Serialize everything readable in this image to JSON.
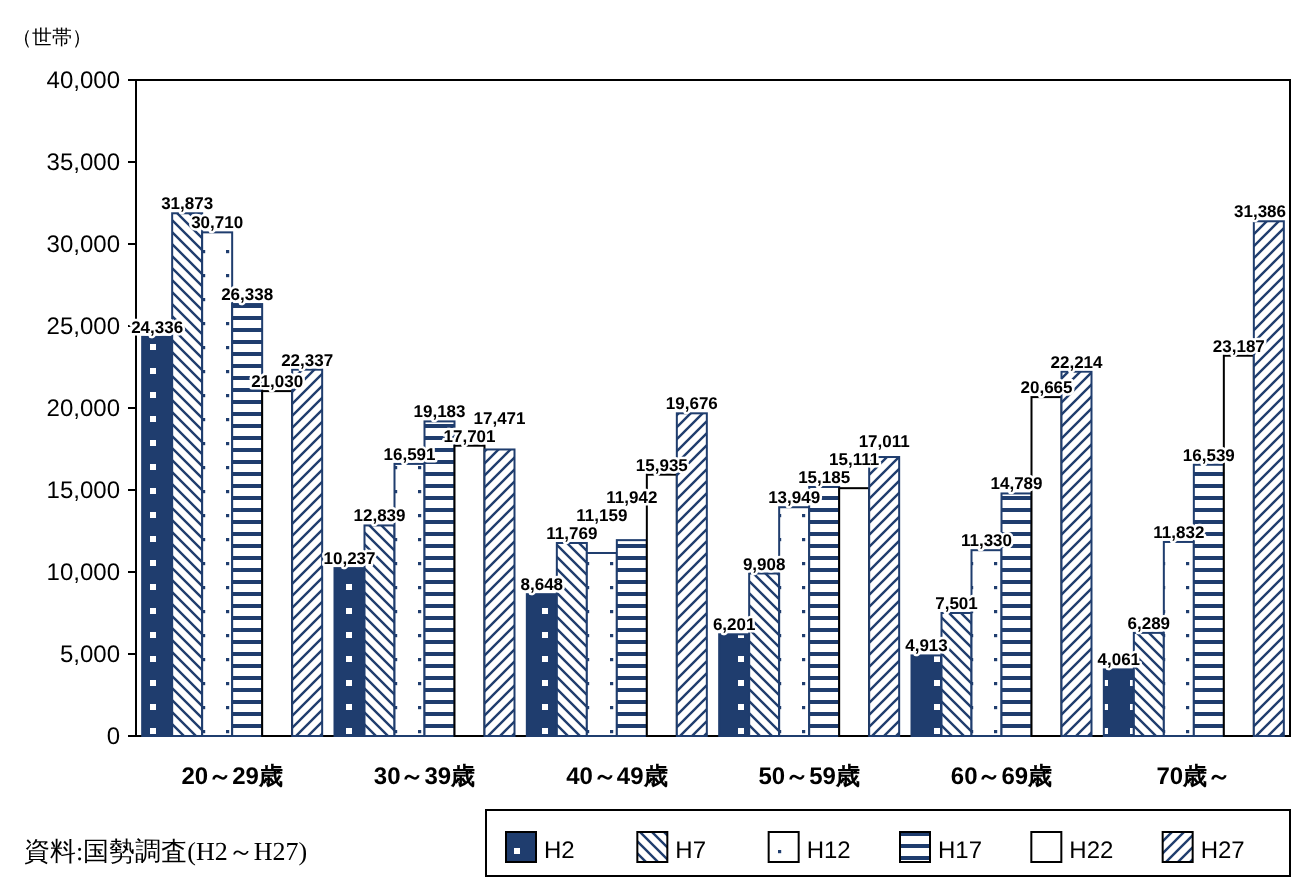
{
  "chart_data": {
    "type": "bar",
    "ylabel": "（世帯）",
    "categories": [
      "20～29歳",
      "30～39歳",
      "40～49歳",
      "50～59歳",
      "60～69歳",
      "70歳～"
    ],
    "series": [
      {
        "name": "H2",
        "color": "#1f3d6e",
        "values": [
          24336,
          10237,
          8648,
          6201,
          4913,
          4061
        ],
        "value_labels": [
          "24,336",
          "10,237",
          "8,648",
          "6,201",
          "4,913",
          "4,061"
        ]
      },
      {
        "name": "H7",
        "color": "#1f3d6e",
        "values": [
          31873,
          12839,
          11769,
          9908,
          7501,
          6289
        ],
        "value_labels": [
          "31,873",
          "12,839",
          "11,769",
          "9,908",
          "7,501",
          "6,289"
        ]
      },
      {
        "name": "H12",
        "color": "#1f3d6e",
        "values": [
          30710,
          16591,
          11159,
          13949,
          11330,
          11832
        ],
        "value_labels": [
          "30,710",
          "16,591",
          "11,159",
          "13,949",
          "11,330",
          "11,832"
        ]
      },
      {
        "name": "H17",
        "color": "#1f3d6e",
        "values": [
          26338,
          19183,
          11942,
          15185,
          14789,
          16539
        ],
        "value_labels": [
          "26,338",
          "19,183",
          "11,942",
          "15,185",
          "14,789",
          "16,539"
        ]
      },
      {
        "name": "H22",
        "color": "#000000",
        "values": [
          21030,
          17701,
          15935,
          15111,
          20665,
          23187
        ],
        "value_labels": [
          "21,030",
          "17,701",
          "15,935",
          "15,111",
          "20,665",
          "23,187"
        ]
      },
      {
        "name": "H27",
        "color": "#1f3d6e",
        "values": [
          22337,
          17471,
          19676,
          17011,
          22214,
          31386
        ],
        "value_labels": [
          "22,337",
          "17,471",
          "19,676",
          "17,011",
          "22,214",
          "31,386"
        ]
      }
    ],
    "ylim": [
      0,
      40000
    ],
    "yticks": [
      {
        "value": 0,
        "label": "0"
      },
      {
        "value": 5000,
        "label": "5,000"
      },
      {
        "value": 10000,
        "label": "10,000"
      },
      {
        "value": 15000,
        "label": "15,000"
      },
      {
        "value": 20000,
        "label": "20,000"
      },
      {
        "value": 25000,
        "label": "25,000"
      },
      {
        "value": 30000,
        "label": "30,000"
      },
      {
        "value": 35000,
        "label": "35,000"
      },
      {
        "value": 40000,
        "label": "40,000"
      }
    ],
    "grid": false,
    "legend": "bottom right",
    "annotations": [
      "資料:国勢調査(H2～H27)"
    ]
  }
}
